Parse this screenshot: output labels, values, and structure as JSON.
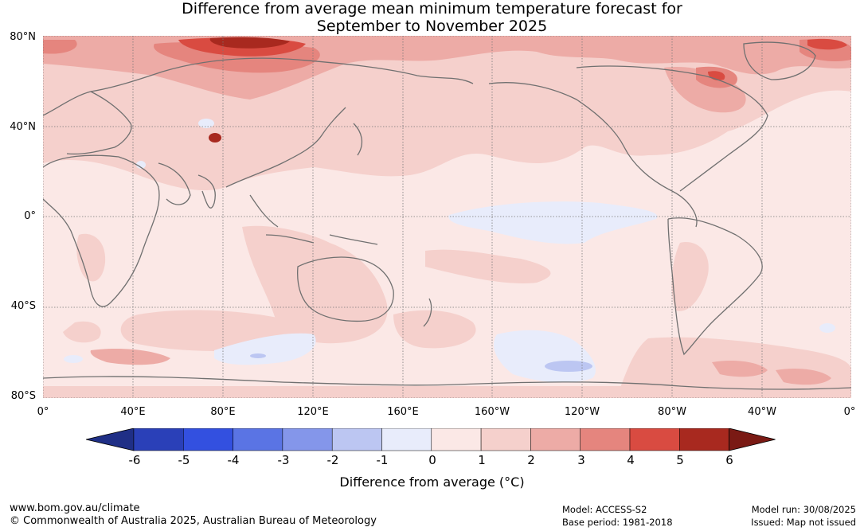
{
  "title": {
    "line1": "Difference from average mean minimum temperature forecast for",
    "line2": "September to November 2025"
  },
  "axes": {
    "lat_ticks": [
      "80°N",
      "40°N",
      "0°",
      "40°S",
      "80°S"
    ],
    "lon_ticks": [
      "0°",
      "40°E",
      "80°E",
      "120°E",
      "160°E",
      "160°W",
      "120°W",
      "80°W",
      "40°W",
      "0°"
    ]
  },
  "colorbar": {
    "ticks": [
      "-6",
      "-5",
      "-4",
      "-3",
      "-2",
      "-1",
      "0",
      "1",
      "2",
      "3",
      "4",
      "5",
      "6"
    ],
    "label": "Difference from average (°C)",
    "colors": [
      "#1f2f86",
      "#2a40b8",
      "#3350e0",
      "#5a74e4",
      "#8496ea",
      "#bcc6f2",
      "#e8ecfb",
      "#fbe8e6",
      "#f5d0cc",
      "#edaba6",
      "#e5857e",
      "#d94b41",
      "#a8291f",
      "#7a1a14"
    ]
  },
  "footer": {
    "website": "www.bom.gov.au/climate",
    "copyright": "© Commonwealth of Australia 2025, Australian Bureau of Meteorology",
    "model": "Model: ACCESS-S2",
    "base_period": "Base period: 1981-2018",
    "model_run": "Model run: 30/08/2025",
    "issued": "Issued: Map not issued"
  }
}
